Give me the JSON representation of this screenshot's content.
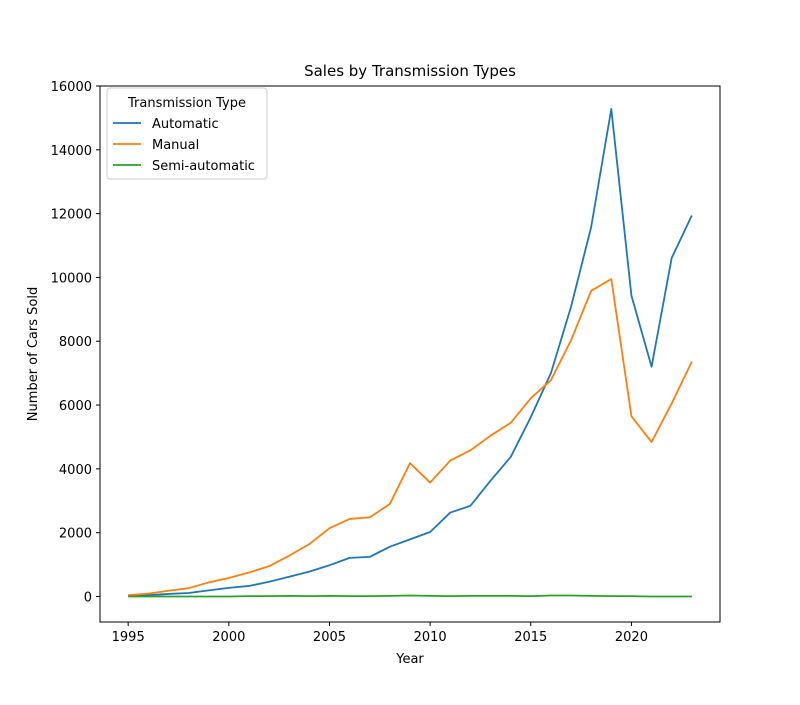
{
  "chart_data": {
    "type": "line",
    "title": "Sales by Transmission Types",
    "xlabel": "Year",
    "ylabel": "Number of Cars Sold",
    "xlim": [
      1993.6,
      2024.4
    ],
    "ylim": [
      -800,
      16000
    ],
    "x_ticks": [
      1995,
      2000,
      2005,
      2010,
      2015,
      2020
    ],
    "y_ticks": [
      0,
      2000,
      4000,
      6000,
      8000,
      10000,
      12000,
      14000,
      16000
    ],
    "grid": false,
    "legend": {
      "title": "Transmission Type",
      "placement": "top-left"
    },
    "x": [
      1995,
      1996,
      1997,
      1998,
      1999,
      2000,
      2001,
      2002,
      2003,
      2004,
      2005,
      2006,
      2007,
      2008,
      2009,
      2010,
      2011,
      2012,
      2013,
      2014,
      2015,
      2016,
      2017,
      2018,
      2019,
      2020,
      2021,
      2022,
      2023
    ],
    "series": [
      {
        "name": "Automatic",
        "color": "#1f77b4",
        "values": [
          20,
          40,
          80,
          110,
          190,
          270,
          330,
          460,
          620,
          780,
          980,
          1210,
          1240,
          1560,
          1790,
          2020,
          2630,
          2840,
          3630,
          4370,
          5620,
          7000,
          9080,
          11580,
          15280,
          9430,
          7200,
          10610,
          11940
        ]
      },
      {
        "name": "Manual",
        "color": "#ff7f0e",
        "values": [
          40,
          90,
          180,
          260,
          440,
          580,
          750,
          950,
          1280,
          1640,
          2140,
          2430,
          2480,
          2900,
          4180,
          3570,
          4260,
          4580,
          5040,
          5440,
          6210,
          6780,
          8030,
          9580,
          9950,
          5650,
          4840,
          6050,
          7360
        ]
      },
      {
        "name": "Semi-automatic",
        "color": "#2ca02c",
        "values": [
          0,
          0,
          0,
          0,
          0,
          0,
          10,
          10,
          20,
          10,
          20,
          10,
          10,
          20,
          30,
          20,
          10,
          20,
          20,
          20,
          10,
          30,
          30,
          20,
          10,
          10,
          0,
          0,
          0
        ]
      }
    ]
  }
}
